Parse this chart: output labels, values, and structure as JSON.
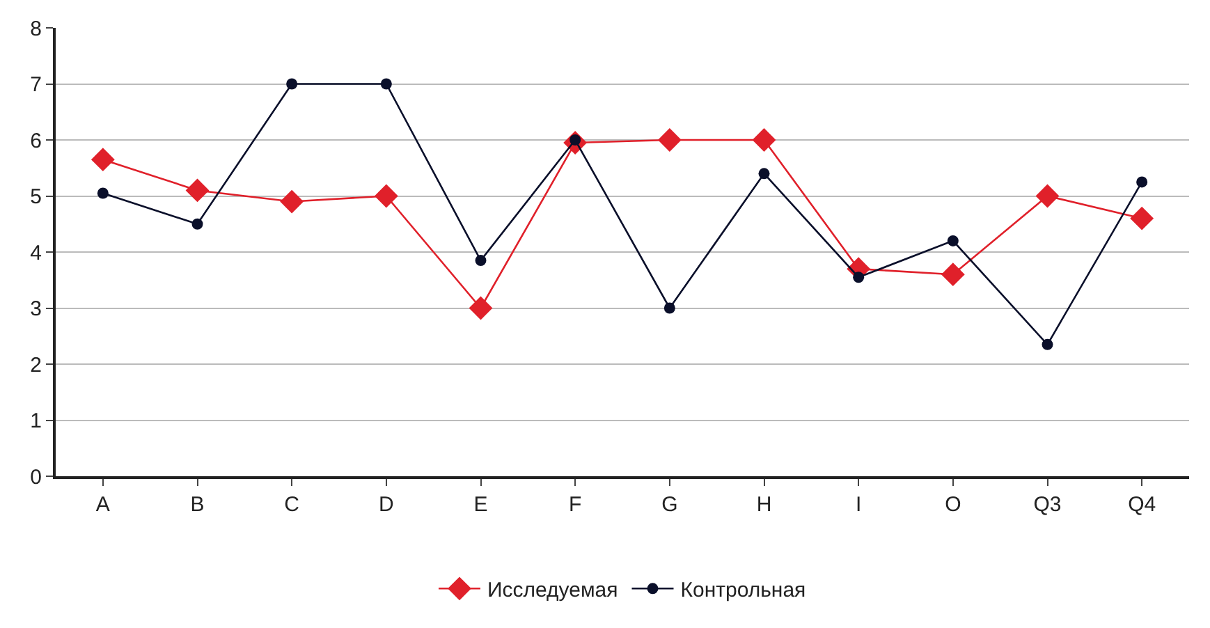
{
  "chart_data": {
    "type": "line",
    "categories": [
      "A",
      "B",
      "C",
      "D",
      "E",
      "F",
      "G",
      "H",
      "I",
      "O",
      "Q3",
      "Q4"
    ],
    "series": [
      {
        "name": "Исследуемая",
        "color": "#e0202a",
        "marker": "diamond",
        "values": [
          5.65,
          5.1,
          4.9,
          5.0,
          3.0,
          5.95,
          6.0,
          6.0,
          3.7,
          3.6,
          5.0,
          4.6
        ]
      },
      {
        "name": "Контрольная",
        "color": "#0a0f2a",
        "marker": "circle",
        "values": [
          5.05,
          4.5,
          7.0,
          7.0,
          3.85,
          6.0,
          3.0,
          5.4,
          3.55,
          4.2,
          2.35,
          5.25
        ]
      }
    ],
    "ylim": [
      0,
      8
    ],
    "yticks": [
      0,
      1,
      2,
      3,
      4,
      5,
      6,
      7,
      8
    ],
    "grid": "y",
    "legend": "bottom"
  }
}
